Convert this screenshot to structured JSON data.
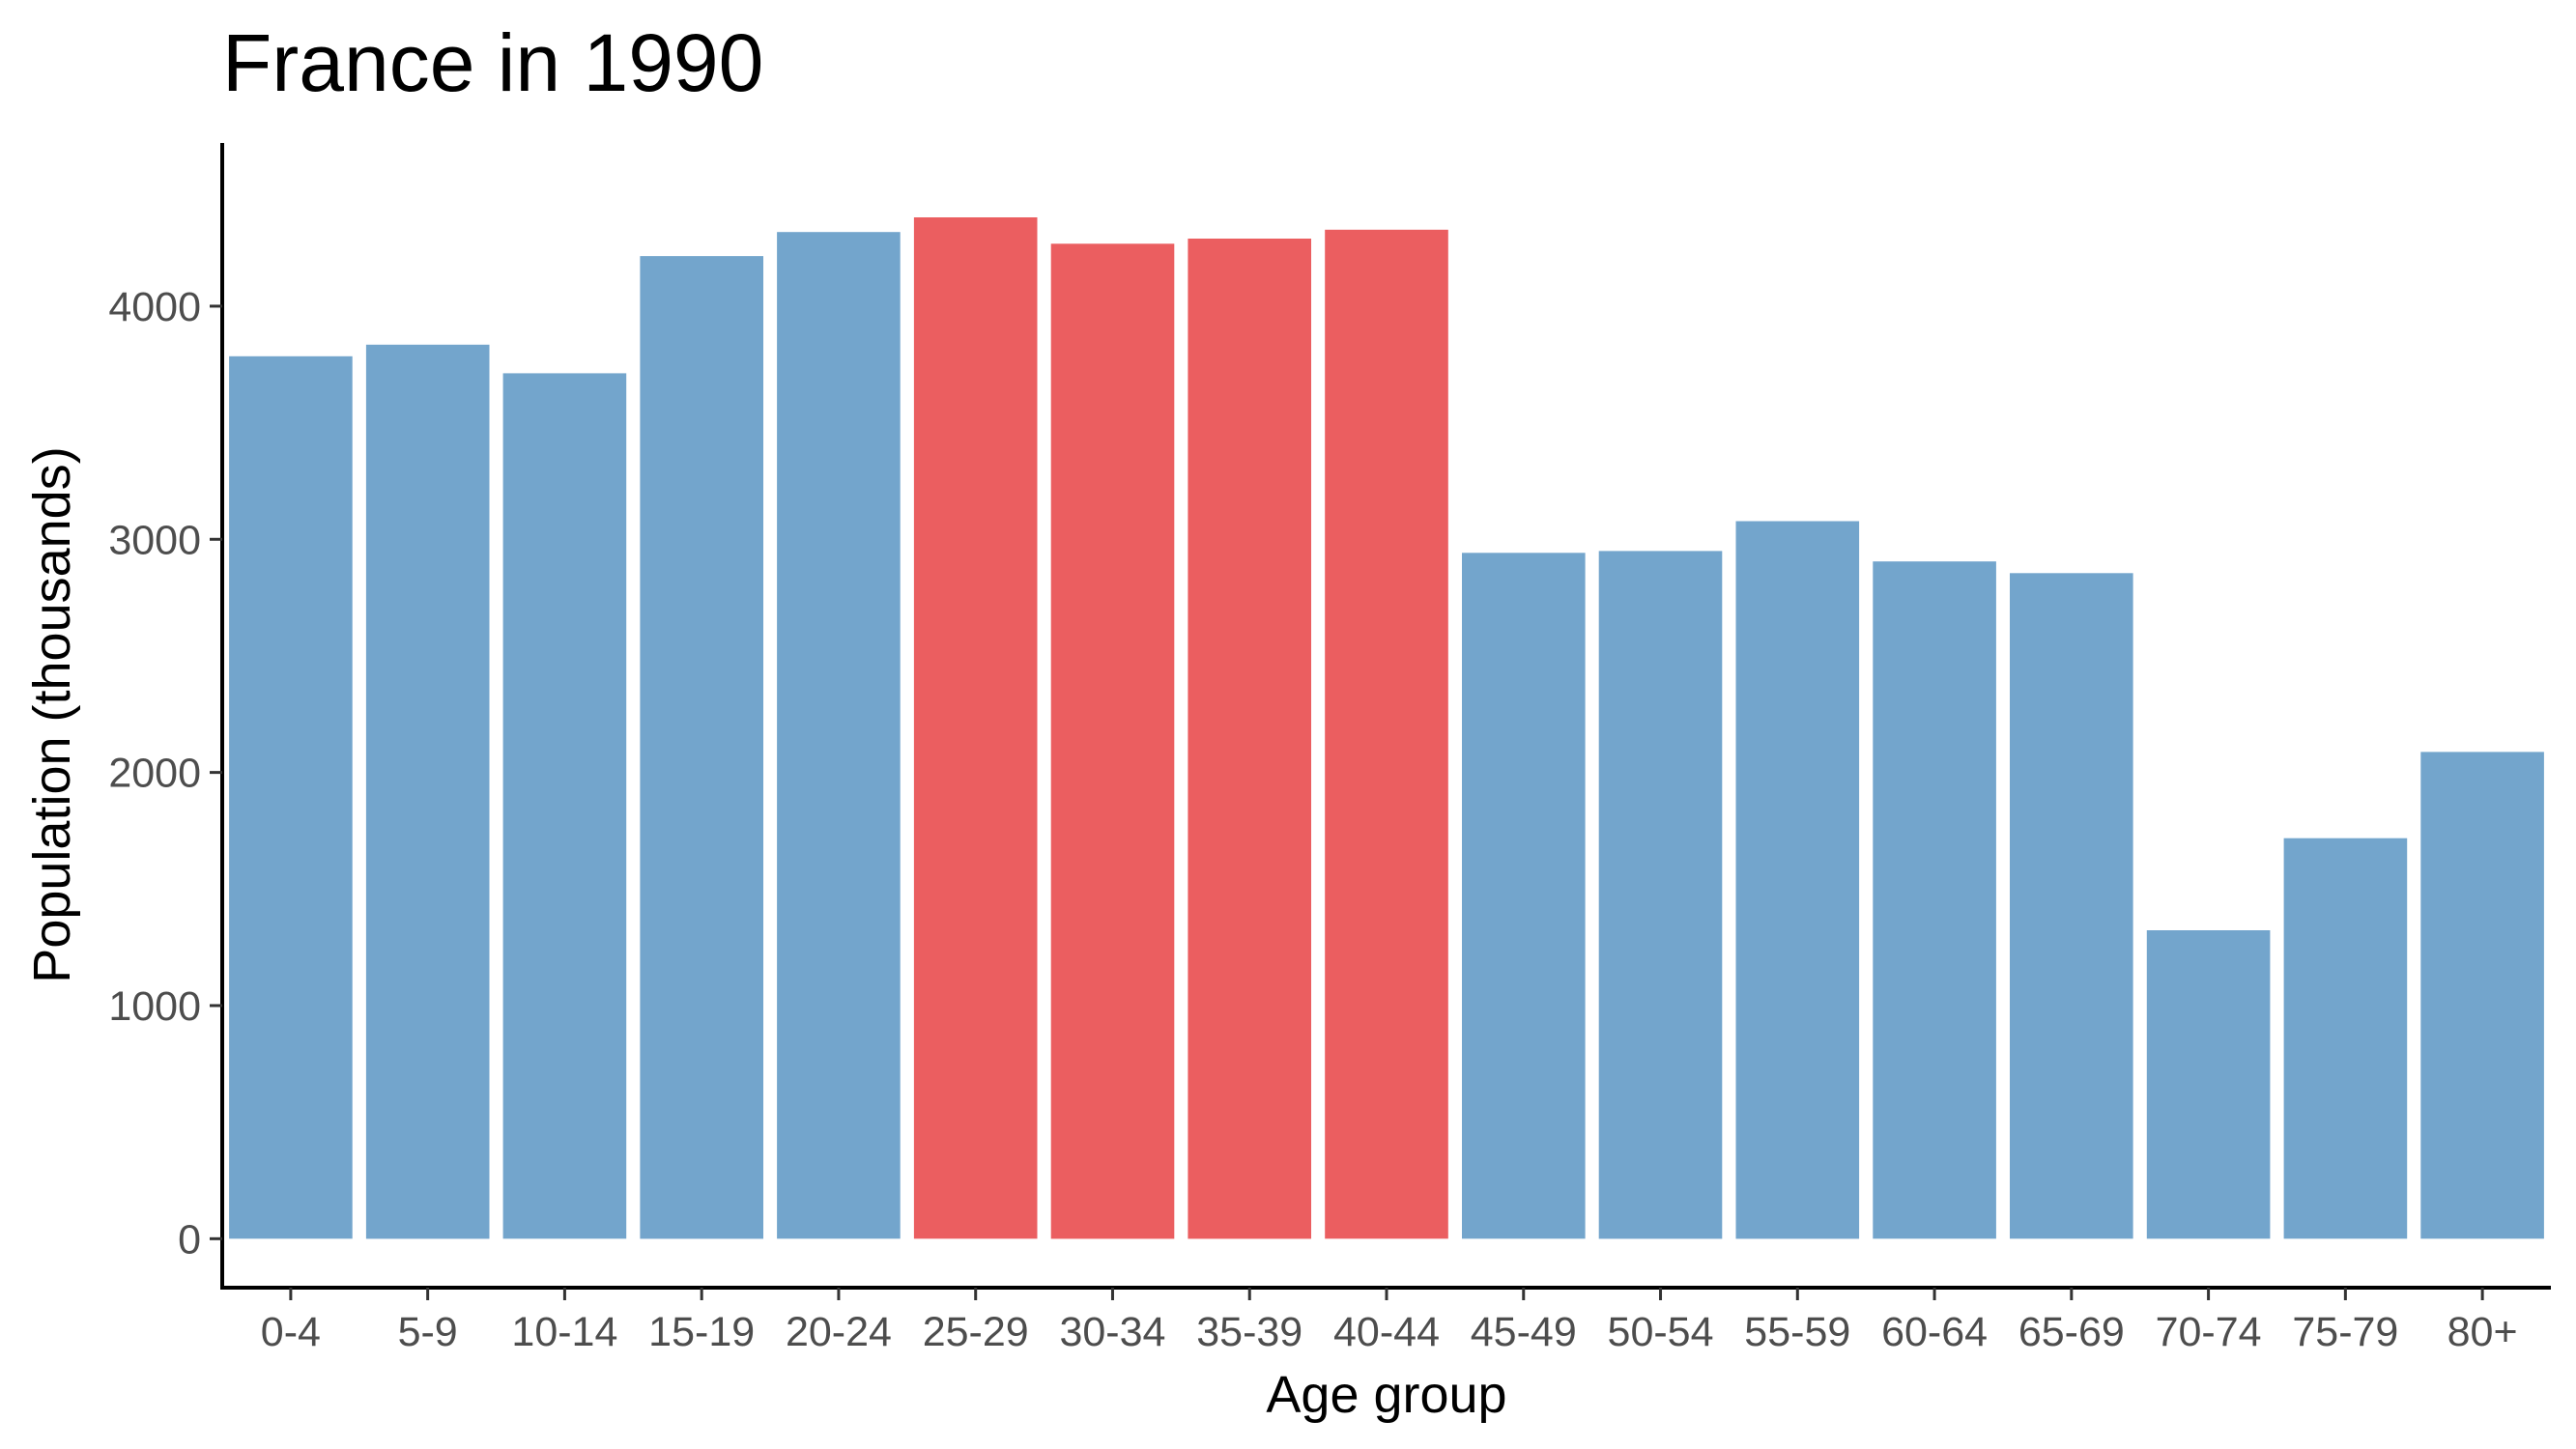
{
  "chart_data": {
    "type": "bar",
    "title": "France in 1990",
    "xlabel": "Age group",
    "ylabel": "Population (thousands)",
    "categories": [
      "0-4",
      "5-9",
      "10-14",
      "15-19",
      "20-24",
      "25-29",
      "30-34",
      "35-39",
      "40-44",
      "45-49",
      "50-54",
      "55-59",
      "60-64",
      "65-69",
      "70-74",
      "75-79",
      "80+"
    ],
    "values": [
      3785,
      3835,
      3712,
      4215,
      4318,
      4381,
      4268,
      4290,
      4328,
      2942,
      2950,
      3078,
      2905,
      2855,
      1323,
      1718,
      2088
    ],
    "highlighted": [
      false,
      false,
      false,
      false,
      false,
      true,
      true,
      true,
      true,
      false,
      false,
      false,
      false,
      false,
      false,
      false,
      false
    ],
    "colors": {
      "default": "#73a5cc",
      "highlight": "#eb5e60"
    },
    "y_ticks": [
      0,
      1000,
      2000,
      3000,
      4000
    ],
    "ylim": [
      -210,
      4700
    ],
    "grid": false,
    "legend": "none"
  }
}
